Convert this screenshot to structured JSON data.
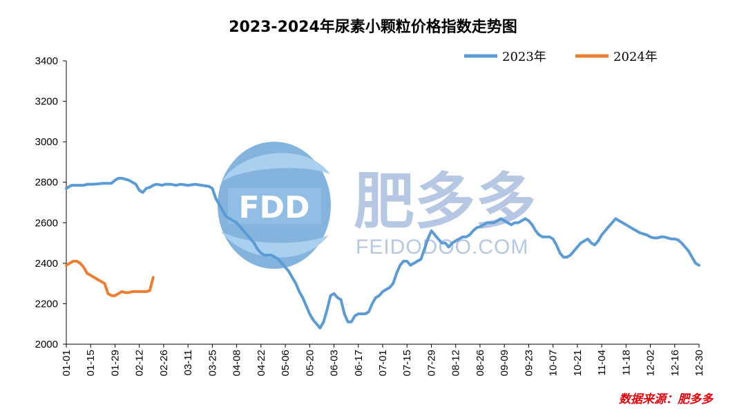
{
  "chart_data": {
    "type": "line",
    "title": "2023-2024年尿素小颗粒价格指数走势图",
    "xlabel": "",
    "ylabel": "",
    "ylim": [
      2000,
      3400
    ],
    "yticks": [
      2000,
      2200,
      2400,
      2600,
      2800,
      3000,
      3200,
      3400
    ],
    "xlim": [
      0,
      364
    ],
    "xtick_labels": [
      "01-01",
      "01-15",
      "01-29",
      "02-12",
      "02-26",
      "03-11",
      "03-25",
      "04-08",
      "04-22",
      "05-06",
      "05-20",
      "06-03",
      "06-17",
      "07-01",
      "07-15",
      "07-29",
      "08-12",
      "08-26",
      "09-09",
      "09-23",
      "10-07",
      "10-21",
      "11-04",
      "11-18",
      "12-02",
      "12-16",
      "12-30"
    ],
    "xtick_days": [
      0,
      14,
      28,
      42,
      56,
      70,
      84,
      98,
      112,
      126,
      140,
      154,
      168,
      182,
      196,
      210,
      224,
      238,
      252,
      266,
      280,
      294,
      308,
      322,
      336,
      350,
      364
    ],
    "legend_position": "top-right",
    "grid": false,
    "series": [
      {
        "name": "2023年",
        "color": "#5b9bd5",
        "x": [
          0,
          3,
          6,
          10,
          12,
          15,
          18,
          21,
          26,
          28,
          30,
          32,
          34,
          36,
          38,
          40,
          42,
          44,
          46,
          48,
          50,
          52,
          55,
          57,
          60,
          63,
          66,
          70,
          74,
          78,
          82,
          84,
          86,
          88,
          90,
          92,
          94,
          96,
          98,
          100,
          102,
          104,
          106,
          108,
          110,
          112,
          114,
          116,
          118,
          120,
          122,
          124,
          126,
          128,
          130,
          132,
          134,
          136,
          138,
          140,
          142,
          144,
          146,
          148,
          150,
          152,
          154,
          156,
          158,
          160,
          162,
          164,
          166,
          168,
          170,
          172,
          174,
          176,
          178,
          180,
          182,
          184,
          186,
          188,
          190,
          192,
          194,
          196,
          198,
          200,
          202,
          204,
          206,
          208,
          210,
          212,
          214,
          216,
          218,
          220,
          222,
          224,
          226,
          228,
          230,
          232,
          234,
          236,
          238,
          240,
          242,
          244,
          246,
          248,
          250,
          252,
          254,
          256,
          258,
          260,
          262,
          264,
          266,
          268,
          270,
          272,
          274,
          276,
          278,
          280,
          282,
          284,
          286,
          288,
          290,
          292,
          294,
          296,
          298,
          300,
          302,
          304,
          306,
          308,
          310,
          312,
          314,
          316,
          318,
          320,
          322,
          324,
          326,
          328,
          330,
          332,
          334,
          336,
          338,
          340,
          342,
          344,
          346,
          348,
          350,
          352,
          354,
          356,
          358,
          360,
          362,
          364
        ],
        "values": [
          2770,
          2785,
          2785,
          2785,
          2790,
          2790,
          2792,
          2795,
          2795,
          2810,
          2820,
          2820,
          2815,
          2810,
          2800,
          2790,
          2760,
          2750,
          2770,
          2775,
          2785,
          2790,
          2785,
          2790,
          2790,
          2785,
          2790,
          2785,
          2790,
          2785,
          2780,
          2770,
          2720,
          2690,
          2660,
          2630,
          2620,
          2610,
          2600,
          2580,
          2560,
          2540,
          2520,
          2500,
          2470,
          2450,
          2440,
          2440,
          2440,
          2430,
          2420,
          2400,
          2380,
          2360,
          2330,
          2300,
          2260,
          2230,
          2190,
          2150,
          2120,
          2100,
          2080,
          2110,
          2170,
          2240,
          2250,
          2230,
          2220,
          2150,
          2110,
          2110,
          2140,
          2150,
          2150,
          2150,
          2160,
          2200,
          2230,
          2240,
          2260,
          2270,
          2280,
          2300,
          2350,
          2390,
          2410,
          2410,
          2390,
          2400,
          2410,
          2420,
          2470,
          2520,
          2560,
          2540,
          2520,
          2500,
          2500,
          2480,
          2500,
          2510,
          2520,
          2530,
          2530,
          2540,
          2560,
          2575,
          2580,
          2590,
          2600,
          2600,
          2600,
          2610,
          2620,
          2610,
          2600,
          2590,
          2600,
          2600,
          2610,
          2620,
          2610,
          2590,
          2560,
          2540,
          2530,
          2530,
          2530,
          2520,
          2490,
          2450,
          2430,
          2430,
          2440,
          2460,
          2480,
          2500,
          2510,
          2520,
          2500,
          2490,
          2510,
          2540,
          2560,
          2580,
          2600,
          2620,
          2610,
          2600,
          2590,
          2580,
          2570,
          2560,
          2550,
          2545,
          2540,
          2530,
          2525,
          2525,
          2530,
          2530,
          2525,
          2520,
          2520,
          2515,
          2500,
          2480,
          2460,
          2430,
          2400,
          2390
        ]
      },
      {
        "name": "2024年",
        "color": "#ed7d31",
        "x": [
          0,
          2,
          4,
          6,
          8,
          10,
          12,
          14,
          16,
          18,
          20,
          22,
          24,
          26,
          28,
          30,
          32,
          34,
          36,
          38,
          40,
          42,
          44,
          46,
          48,
          50
        ],
        "values": [
          2390,
          2400,
          2410,
          2410,
          2400,
          2380,
          2350,
          2340,
          2330,
          2320,
          2310,
          2300,
          2250,
          2240,
          2240,
          2250,
          2260,
          2255,
          2255,
          2260,
          2260,
          2260,
          2260,
          2260,
          2265,
          2330
        ]
      }
    ]
  },
  "source_note": "数据来源：肥多多",
  "watermark": {
    "logo_text": "FDD",
    "brand_cn": "肥多多",
    "brand_url": "FEIDODOO.COM"
  }
}
